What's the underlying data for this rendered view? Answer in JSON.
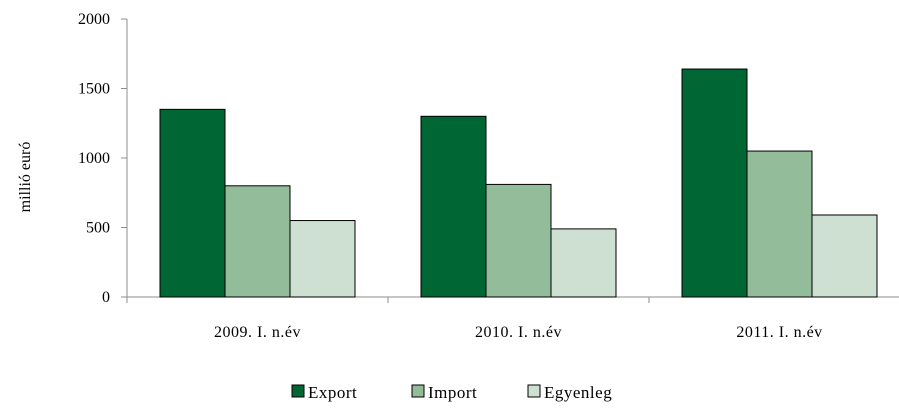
{
  "chart_data": {
    "type": "bar",
    "title": "",
    "xlabel": "",
    "ylabel": "millió euró",
    "categories": [
      "2009. I. n.év",
      "2010. I. n.év",
      "2011. I. n.év"
    ],
    "series": [
      {
        "name": "Export",
        "values": [
          1350,
          1300,
          1640
        ],
        "color": "#006633"
      },
      {
        "name": "Import",
        "values": [
          800,
          810,
          1050
        ],
        "color": "#93bc9b"
      },
      {
        "name": "Egyenleg",
        "values": [
          550,
          490,
          590
        ],
        "color": "#cde0d2"
      }
    ],
    "ylim": [
      0,
      2000
    ],
    "yticks": [
      0,
      500,
      1000,
      1500,
      2000
    ],
    "grid": false,
    "legend_position": "bottom"
  }
}
